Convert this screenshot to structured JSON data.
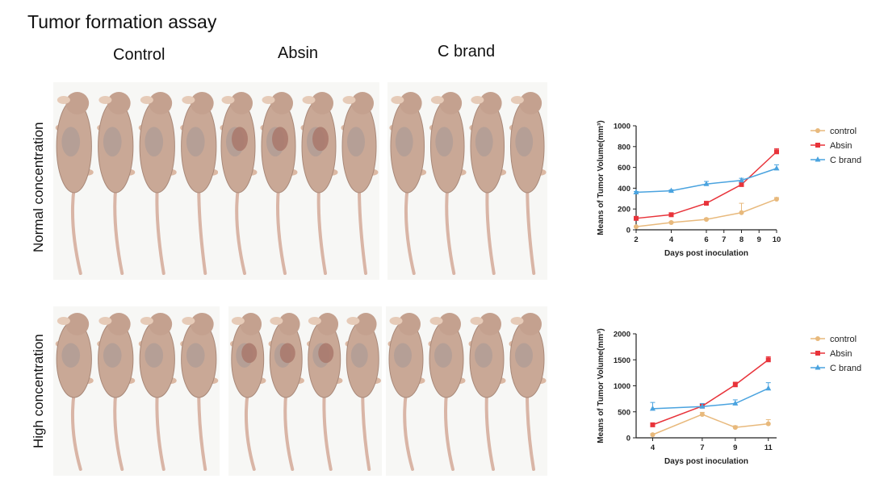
{
  "title": "Tumor formation assay",
  "columns": [
    "Control",
    "Absin",
    "C brand"
  ],
  "rows": [
    "Normal concentration",
    "High concentration"
  ],
  "colors": {
    "control": "#e8b97c",
    "Absin": "#e8333a",
    "C brand": "#4aa3df"
  },
  "chart_data": [
    {
      "type": "line",
      "xlabel": "Days post inoculation",
      "ylabel": "Means of Tumor Volume(mm³)",
      "xlim": [
        2,
        10
      ],
      "ylim": [
        0,
        1000
      ],
      "xticks": [
        "2",
        "4",
        "6",
        "7",
        "8",
        "9",
        "10"
      ],
      "yticks": [
        "0",
        "200",
        "400",
        "600",
        "800",
        "1000"
      ],
      "legend_position": "right",
      "series": [
        {
          "name": "control",
          "x": [
            2,
            4,
            6,
            8,
            10
          ],
          "y": [
            30,
            70,
            100,
            165,
            295
          ],
          "err": [
            5,
            8,
            10,
            90,
            15
          ],
          "marker": "circle"
        },
        {
          "name": "Absin",
          "x": [
            2,
            4,
            6,
            8,
            10
          ],
          "y": [
            110,
            145,
            255,
            435,
            750
          ],
          "err": [
            8,
            10,
            12,
            18,
            30
          ],
          "marker": "square"
        },
        {
          "name": "C brand",
          "x": [
            2,
            4,
            6,
            8,
            10
          ],
          "y": [
            360,
            375,
            440,
            475,
            590
          ],
          "err": [
            8,
            10,
            25,
            20,
            35
          ],
          "marker": "triangle"
        }
      ]
    },
    {
      "type": "line",
      "xlabel": "Days post inoculation",
      "ylabel": "Means of Tumor Volume(mm³)",
      "xlim": [
        3,
        11.5
      ],
      "ylim": [
        0,
        2000
      ],
      "xticks": [
        "4",
        "7",
        "9",
        "11"
      ],
      "yticks": [
        "0",
        "500",
        "1000",
        "1500",
        "2000"
      ],
      "legend_position": "right",
      "series": [
        {
          "name": "control",
          "x": [
            4,
            7,
            9,
            11
          ],
          "y": [
            60,
            450,
            200,
            270
          ],
          "err": [
            20,
            40,
            30,
            80
          ],
          "marker": "circle"
        },
        {
          "name": "Absin",
          "x": [
            4,
            7,
            9,
            11
          ],
          "y": [
            250,
            610,
            1020,
            1500
          ],
          "err": [
            30,
            40,
            50,
            60
          ],
          "marker": "square"
        },
        {
          "name": "C brand",
          "x": [
            4,
            7,
            9,
            11
          ],
          "y": [
            560,
            600,
            660,
            950
          ],
          "err": [
            120,
            60,
            70,
            110
          ],
          "marker": "triangle"
        }
      ]
    }
  ]
}
